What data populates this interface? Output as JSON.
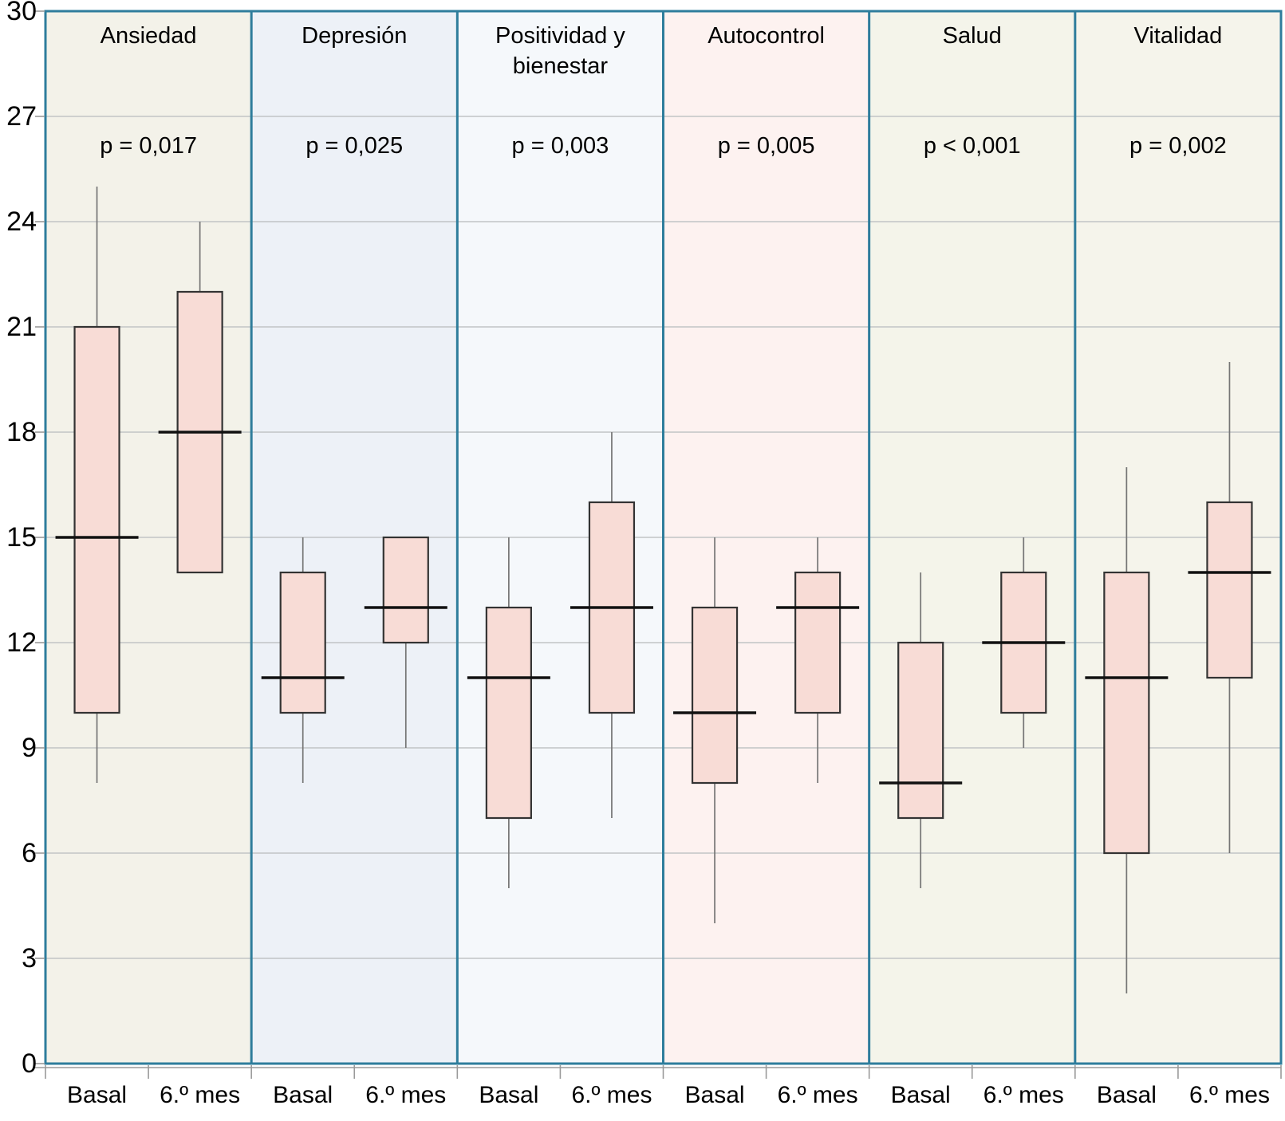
{
  "chart_data": {
    "type": "boxplot",
    "title": "",
    "ylabel": "",
    "ylim": [
      0,
      30
    ],
    "yticks": [
      30,
      27,
      24,
      21,
      18,
      15,
      12,
      9,
      6,
      3,
      0
    ],
    "grid": "horizontal",
    "group_labels": [
      "Basal",
      "6.º mes"
    ],
    "panels": [
      {
        "title": "Ansiedad",
        "title_lines": [
          "Ansiedad"
        ],
        "p_label": "p = 0,017",
        "bg": "#f3f2e9",
        "boxes": [
          {
            "label": "Basal",
            "whisker_low": 8,
            "q1": 10,
            "median": 15,
            "q3": 21,
            "whisker_high": 25
          },
          {
            "label": "6.º mes",
            "whisker_low": 14,
            "q1": 14,
            "median": 18,
            "q3": 22,
            "whisker_high": 24
          }
        ]
      },
      {
        "title": "Depresión",
        "title_lines": [
          "Depresión"
        ],
        "p_label": "p = 0,025",
        "bg": "#edf1f7",
        "boxes": [
          {
            "label": "Basal",
            "whisker_low": 8,
            "q1": 10,
            "median": 11,
            "q3": 14,
            "whisker_high": 15
          },
          {
            "label": "6.º mes",
            "whisker_low": 9,
            "q1": 12,
            "median": 13,
            "q3": 15,
            "whisker_high": 15
          }
        ]
      },
      {
        "title": "Positividad y bienestar",
        "title_lines": [
          "Positividad y",
          "bienestar"
        ],
        "p_label": "p = 0,003",
        "bg": "#f5f8fb",
        "boxes": [
          {
            "label": "Basal",
            "whisker_low": 5,
            "q1": 7,
            "median": 11,
            "q3": 13,
            "whisker_high": 15
          },
          {
            "label": "6.º mes",
            "whisker_low": 7,
            "q1": 10,
            "median": 13,
            "q3": 16,
            "whisker_high": 18
          }
        ]
      },
      {
        "title": "Autocontrol",
        "title_lines": [
          "Autocontrol"
        ],
        "p_label": "p = 0,005",
        "bg": "#fdf2f0",
        "boxes": [
          {
            "label": "Basal",
            "whisker_low": 4,
            "q1": 8,
            "median": 10,
            "q3": 13,
            "whisker_high": 15
          },
          {
            "label": "6.º mes",
            "whisker_low": 8,
            "q1": 10,
            "median": 13,
            "q3": 14,
            "whisker_high": 15
          }
        ]
      },
      {
        "title": "Salud",
        "title_lines": [
          "Salud"
        ],
        "p_label": "p < 0,001",
        "bg": "#f4f4ea",
        "boxes": [
          {
            "label": "Basal",
            "whisker_low": 5,
            "q1": 7,
            "median": 8,
            "q3": 12,
            "whisker_high": 14
          },
          {
            "label": "6.º mes",
            "whisker_low": 9,
            "q1": 10,
            "median": 12,
            "q3": 14,
            "whisker_high": 15
          }
        ]
      },
      {
        "title": "Vitalidad",
        "title_lines": [
          "Vitalidad"
        ],
        "p_label": "p = 0,002",
        "bg": "#f5f4eb",
        "boxes": [
          {
            "label": "Basal",
            "whisker_low": 2,
            "q1": 6,
            "median": 11,
            "q3": 14,
            "whisker_high": 17
          },
          {
            "label": "6.º mes",
            "whisker_low": 6,
            "q1": 11,
            "median": 14,
            "q3": 16,
            "whisker_high": 20
          }
        ]
      }
    ],
    "style": {
      "panel_border_color": "#2e7d9c",
      "grid_color": "#c2c4c6",
      "box_fill": "#f8dcd6",
      "box_stroke": "#333333",
      "median_color": "#111111",
      "whisker_color": "#757575",
      "tick_color": "#9a9a9a",
      "text_color": "#000000"
    }
  }
}
